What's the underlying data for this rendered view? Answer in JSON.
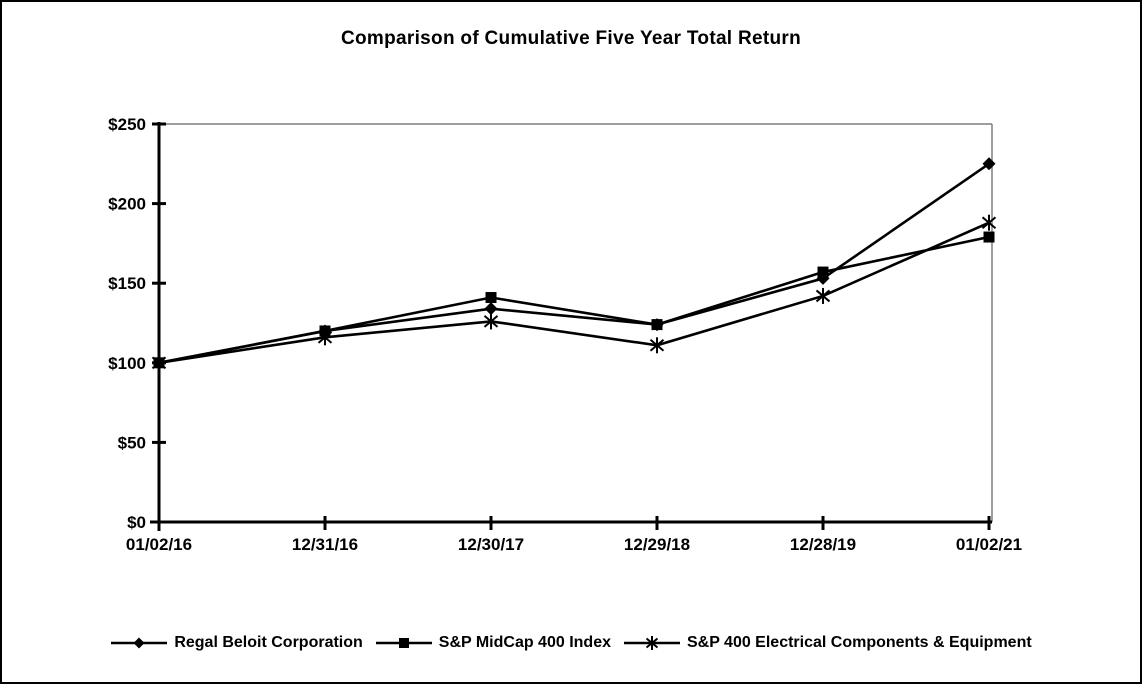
{
  "chart_data": {
    "type": "line",
    "title": "Comparison of Cumulative Five Year Total Return",
    "categories": [
      "01/02/16",
      "12/31/16",
      "12/30/17",
      "12/29/18",
      "12/28/19",
      "01/02/21"
    ],
    "series": [
      {
        "name": "Regal Beloit Corporation",
        "marker": "diamond",
        "values": [
          100,
          120,
          134,
          124,
          153,
          225
        ]
      },
      {
        "name": "S&P MidCap 400 Index",
        "marker": "square",
        "values": [
          100,
          120,
          141,
          124,
          157,
          179
        ]
      },
      {
        "name": "S&P 400 Electrical Components & Equipment",
        "marker": "asterisk",
        "values": [
          100,
          116,
          126,
          111,
          142,
          188
        ]
      }
    ],
    "xlabel": "",
    "ylabel": "",
    "ylim": [
      0,
      250
    ],
    "y_tick_values": [
      0,
      50,
      100,
      150,
      200,
      250
    ],
    "y_tick_labels": [
      "$0",
      "$50",
      "$100",
      "$150",
      "$200",
      "$250"
    ],
    "grid": false,
    "legend_position": "bottom",
    "colors": {
      "line": "#000000",
      "text": "#000000",
      "frame": "#7f7f7f",
      "background": "#ffffff"
    }
  }
}
